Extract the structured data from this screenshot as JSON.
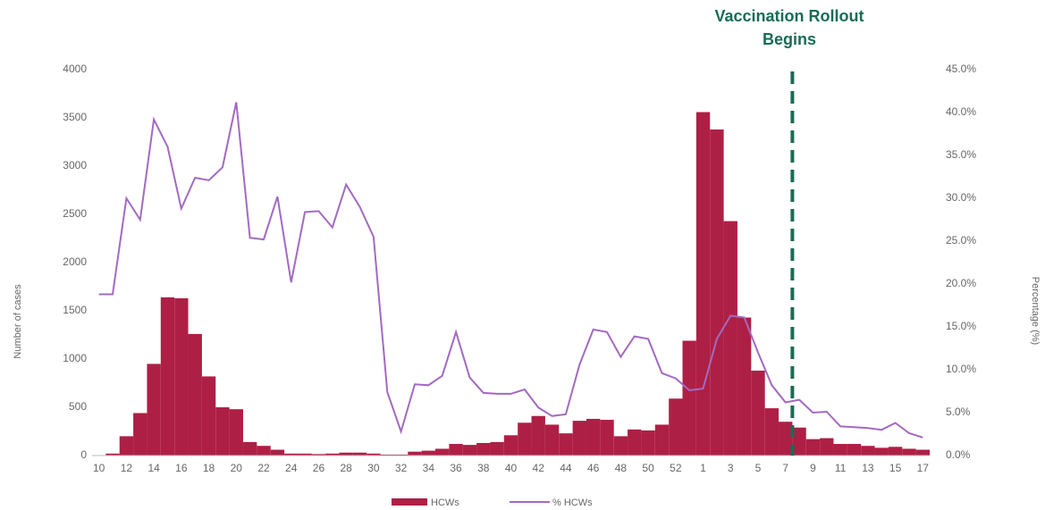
{
  "chart_data": {
    "type": "bar_line",
    "annotation": [
      "Vaccination Rollout",
      "Begins"
    ],
    "y_label": "Number of cases",
    "y2_label": "Percentage (%)",
    "categories": [
      "10",
      null,
      "12",
      null,
      "14",
      null,
      "16",
      null,
      "18",
      null,
      "20",
      null,
      "22",
      null,
      "24",
      null,
      "26",
      null,
      "28",
      null,
      "30",
      null,
      "32",
      null,
      "34",
      null,
      "36",
      null,
      "38",
      null,
      "40",
      null,
      "42",
      null,
      "44",
      null,
      "46",
      null,
      "48",
      null,
      "50",
      null,
      "52",
      null,
      "1",
      null,
      "3",
      null,
      "5",
      null,
      "7",
      null,
      "9",
      null,
      "11",
      null,
      "13",
      null,
      "15",
      null,
      "17"
    ],
    "series": [
      {
        "name": "HCWs",
        "color": "#ae1f45",
        "values": [
          0,
          20,
          200,
          440,
          950,
          1640,
          1630,
          1260,
          820,
          500,
          480,
          140,
          100,
          60,
          20,
          20,
          15,
          20,
          30,
          30,
          20,
          10,
          10,
          40,
          50,
          70,
          120,
          110,
          130,
          140,
          210,
          340,
          410,
          320,
          230,
          360,
          380,
          370,
          200,
          270,
          260,
          320,
          590,
          1190,
          3560,
          3380,
          2430,
          1430,
          880,
          490,
          350,
          290,
          170,
          180,
          120,
          120,
          100,
          80,
          90,
          70,
          60
        ]
      },
      {
        "name": "% HCWs",
        "color": "#a36ac0",
        "axis": "y2",
        "values": [
          18.8,
          18.8,
          30,
          27.5,
          39.2,
          36,
          28.8,
          32.4,
          32.1,
          33.6,
          41.2,
          25.4,
          25.2,
          30.2,
          20.2,
          28.4,
          28.5,
          26.6,
          31.6,
          29,
          25.5,
          7.4,
          2.8,
          8.3,
          8.2,
          9.3,
          14.4,
          9.1,
          7.3,
          7.2,
          7.2,
          7.7,
          5.6,
          4.6,
          4.8,
          10.6,
          14.7,
          14.4,
          11.5,
          13.9,
          13.6,
          9.6,
          9.0,
          7.6,
          7.8,
          13.6,
          16.3,
          16.1,
          12,
          8.2,
          6.2,
          6.5,
          5,
          5.1,
          3.4,
          3.3,
          3.2,
          3.0,
          3.8,
          2.6,
          2.1
        ]
      }
    ],
    "ylim": [
      0,
      4000
    ],
    "yticks": [
      0,
      500,
      1000,
      1500,
      2000,
      2500,
      3000,
      3500,
      4000
    ],
    "y2lim": [
      0,
      45
    ],
    "y2ticks": [
      {
        "value": 0,
        "label": "0.0%"
      },
      {
        "value": 5,
        "label": "5.0%"
      },
      {
        "value": 10,
        "label": "10.0%"
      },
      {
        "value": 15,
        "label": "15.0%"
      },
      {
        "value": 20,
        "label": "20.0%"
      },
      {
        "value": 25,
        "label": "25.0%"
      },
      {
        "value": 30,
        "label": "30.0%"
      },
      {
        "value": 35,
        "label": "35.0%"
      },
      {
        "value": 40,
        "label": "40.0%"
      },
      {
        "value": 45,
        "label": "45.0%"
      }
    ],
    "legend": "bottom"
  }
}
